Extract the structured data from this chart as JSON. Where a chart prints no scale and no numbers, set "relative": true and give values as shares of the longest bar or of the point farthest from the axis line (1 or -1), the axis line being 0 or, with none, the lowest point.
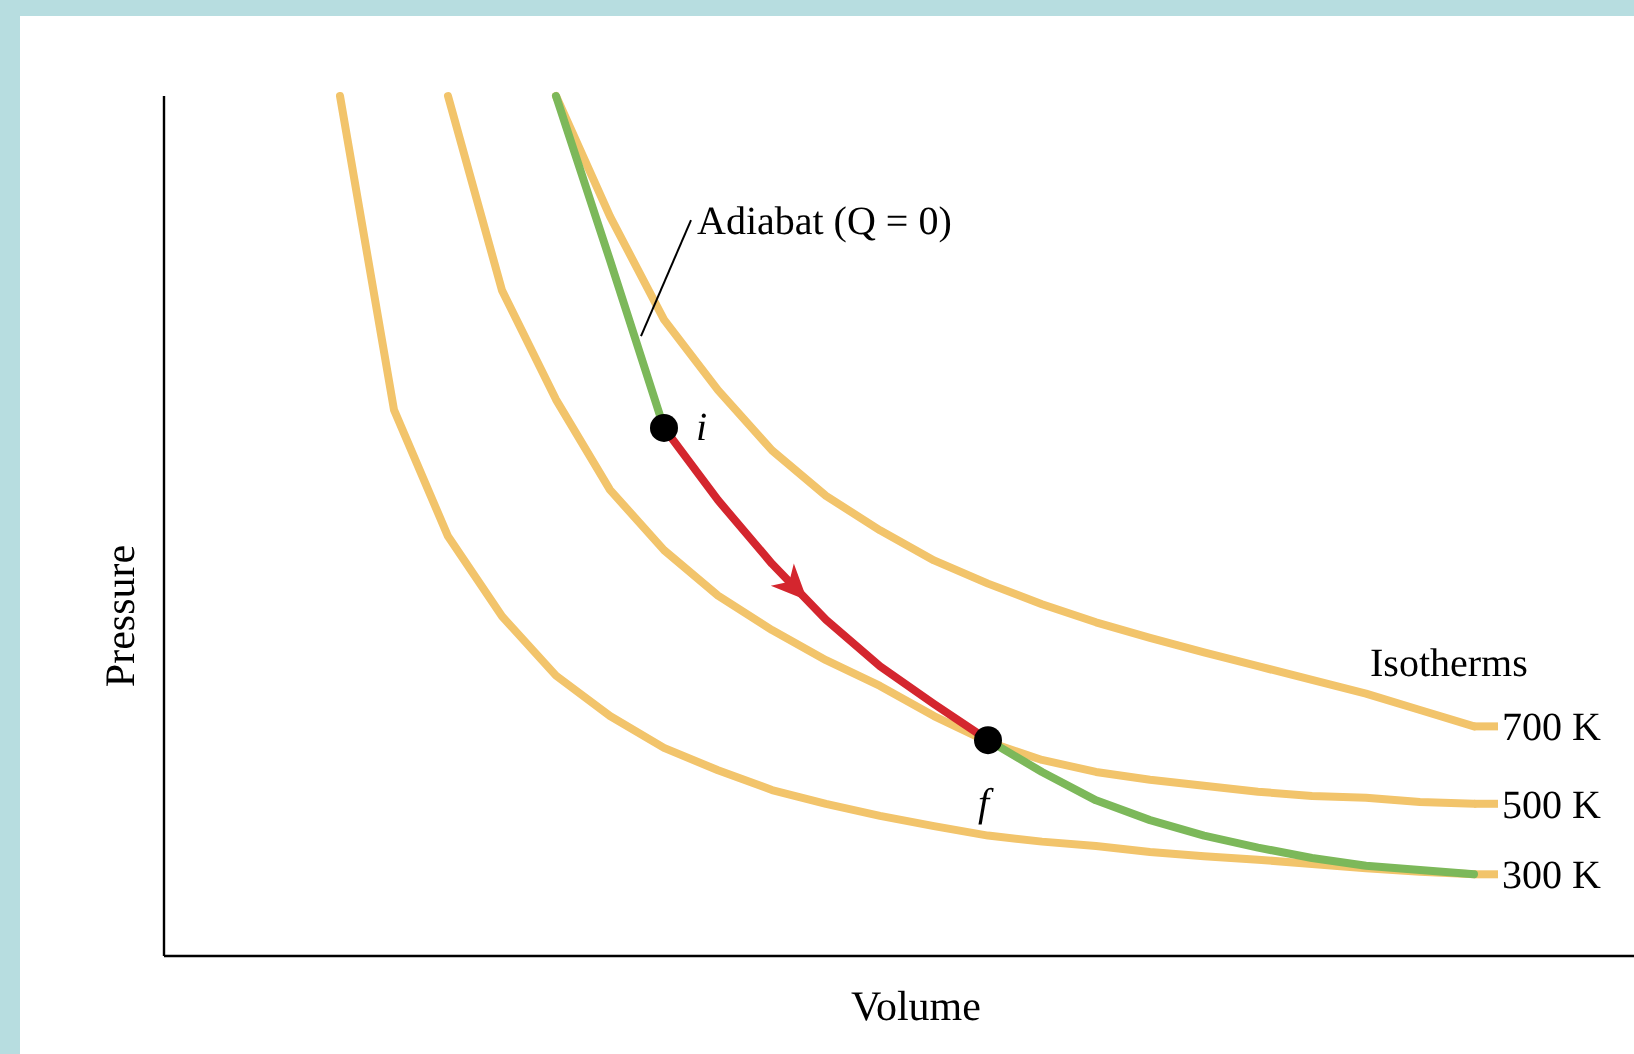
{
  "chart_data": {
    "type": "line",
    "relative": true,
    "xlabel": "Volume",
    "ylabel": "Pressure",
    "legend": "right",
    "marker": "none",
    "line_style": "solid",
    "categories": [
      null,
      null,
      null,
      null,
      null,
      null,
      null,
      null,
      null,
      null,
      null,
      null,
      null,
      null,
      null,
      null,
      null,
      null,
      null,
      null,
      null,
      null,
      null,
      null,
      null,
      null,
      null
    ],
    "series": [
      {
        "name": "300 K",
        "color": "#f2c46b",
        "values": [
          null,
          null,
          null,
          1.0,
          0.635,
          0.488,
          0.395,
          0.326,
          0.279,
          0.242,
          0.216,
          0.193,
          0.177,
          0.163,
          0.151,
          0.14,
          0.133,
          0.128,
          0.121,
          0.116,
          0.112,
          0.107,
          0.102,
          0.098,
          0.095,
          null,
          null
        ]
      },
      {
        "name": "500 K",
        "color": "#f2c46b",
        "values": [
          null,
          null,
          null,
          null,
          null,
          1.0,
          0.774,
          0.647,
          0.542,
          0.472,
          0.419,
          0.379,
          0.344,
          0.314,
          0.279,
          0.249,
          0.228,
          0.214,
          0.205,
          0.198,
          0.191,
          0.186,
          0.184,
          0.179,
          0.177,
          null,
          null
        ]
      },
      {
        "name": "700 K",
        "color": "#f2c46b",
        "values": [
          null,
          null,
          null,
          null,
          null,
          null,
          null,
          1.0,
          0.86,
          0.74,
          0.658,
          0.588,
          0.535,
          0.495,
          0.46,
          0.433,
          0.409,
          0.388,
          0.37,
          0.353,
          0.337,
          0.321,
          0.305,
          0.286,
          0.267,
          null,
          null
        ]
      },
      {
        "color": "#7cb85a",
        "values": [
          null,
          null,
          null,
          null,
          null,
          null,
          null,
          1.0,
          0.809,
          0.614,
          null,
          null,
          null,
          null,
          null,
          null,
          null,
          null,
          null,
          null,
          null,
          null,
          null,
          null,
          null,
          null,
          null
        ]
      },
      {
        "color": "#d4262e",
        "values": [
          null,
          null,
          null,
          null,
          null,
          null,
          null,
          null,
          null,
          0.614,
          0.53,
          0.456,
          0.391,
          0.337,
          0.293,
          0.251,
          null,
          null,
          null,
          null,
          null,
          null,
          null,
          null,
          null,
          null,
          null
        ]
      },
      {
        "color": "#7cb85a",
        "values": [
          null,
          null,
          null,
          null,
          null,
          null,
          null,
          null,
          null,
          null,
          null,
          null,
          null,
          null,
          null,
          0.251,
          0.214,
          0.181,
          0.158,
          0.14,
          0.126,
          0.114,
          0.105,
          0.1,
          0.095,
          null,
          null
        ]
      }
    ],
    "annotations": [
      "Adiabat (Q = 0)",
      "Isotherms",
      "i",
      "f"
    ]
  }
}
